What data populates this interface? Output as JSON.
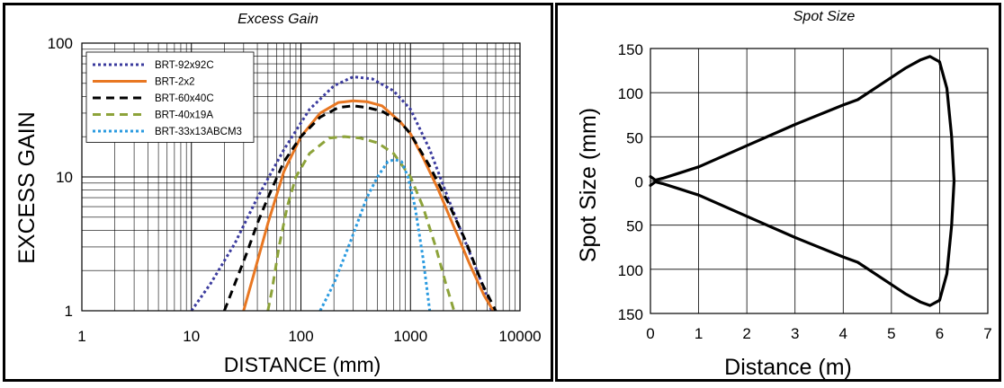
{
  "chart_data": [
    {
      "type": "line",
      "title": "Excess Gain",
      "xlabel": "DISTANCE (mm)",
      "ylabel": "EXCESS GAIN",
      "x_scale": "log",
      "y_scale": "log",
      "xlim": [
        1,
        10000
      ],
      "ylim": [
        1,
        100
      ],
      "x_ticks": [
        "1",
        "10",
        "100",
        "1000",
        "10000"
      ],
      "y_ticks": [
        "1",
        "10",
        "100"
      ],
      "grid": true,
      "legend_position": "top-left",
      "series": [
        {
          "name": "BRT-92x92C",
          "color": "#3b3b9e",
          "dash": "dotted",
          "x": [
            10,
            15,
            25,
            40,
            70,
            120,
            200,
            300,
            450,
            700,
            1000,
            1500,
            2200,
            3200,
            4500,
            5500
          ],
          "y": [
            1,
            1.6,
            3.2,
            7,
            16,
            32,
            48,
            56,
            54,
            44,
            32,
            16,
            7,
            3.2,
            1.6,
            1
          ]
        },
        {
          "name": "BRT-2x2",
          "color": "#e87722",
          "dash": "solid",
          "x": [
            30,
            38,
            50,
            70,
            100,
            150,
            220,
            300,
            400,
            550,
            800,
            1000,
            1300,
            1800,
            2500,
            3500,
            4700,
            5700
          ],
          "y": [
            1,
            2,
            4.5,
            11,
            20,
            30,
            36,
            37,
            36.5,
            34,
            26,
            21,
            14,
            8,
            4.2,
            2.2,
            1.3,
            1
          ]
        },
        {
          "name": "BRT-60x40C",
          "color": "#000000",
          "dash": "dashed",
          "x": [
            20,
            25,
            32,
            40,
            50,
            70,
            100,
            150,
            220,
            300,
            400,
            550,
            800,
            1000,
            1500,
            2200,
            3200,
            4500,
            6000
          ],
          "y": [
            1,
            1.6,
            2.7,
            4.5,
            7,
            13,
            20,
            28,
            33,
            34,
            33,
            31,
            26,
            21,
            12,
            6.5,
            3.3,
            1.6,
            1
          ]
        },
        {
          "name": "BRT-40x19A",
          "color": "#8da33a",
          "dash": "dashed",
          "x": [
            50,
            55,
            63,
            75,
            90,
            120,
            180,
            250,
            350,
            500,
            700,
            1000,
            1300,
            1700,
            2100,
            2500
          ],
          "y": [
            1,
            1.5,
            3,
            6,
            10,
            15,
            19.5,
            20,
            19.5,
            18,
            15,
            10,
            6,
            3,
            1.6,
            1
          ]
        },
        {
          "name": "BRT-33x13ABCM3",
          "color": "#2b9be0",
          "dash": "dotted",
          "x": [
            150,
            200,
            280,
            400,
            500,
            620,
            720,
            830,
            950,
            1100,
            1300,
            1500
          ],
          "y": [
            1,
            1.6,
            3.2,
            7,
            10,
            13,
            13.5,
            13,
            10,
            6,
            2.5,
            1
          ]
        }
      ]
    },
    {
      "type": "line",
      "title": "Spot Size",
      "xlabel": "Distance (m)",
      "ylabel": "Spot Size (mm)",
      "xlim": [
        0,
        7
      ],
      "ylim": [
        -150,
        150
      ],
      "x_ticks": [
        "0",
        "1",
        "2",
        "3",
        "4",
        "5",
        "6",
        "7"
      ],
      "y_ticks": [
        "150",
        "100",
        "50",
        "0",
        "50",
        "100",
        "150"
      ],
      "grid": true,
      "series": [
        {
          "color": "#000000",
          "x": [
            0,
            0.1,
            0.25,
            0.6,
            1,
            2,
            3,
            4,
            4.3,
            4.8,
            5.3,
            5.6,
            5.8,
            6.0,
            6.15,
            6.25,
            6.3,
            6.25,
            6.15,
            6.0,
            5.8,
            5.6,
            5.3,
            4.8,
            4.3,
            4,
            3,
            2,
            1,
            0.6,
            0.25,
            0.1,
            0
          ],
          "y": [
            5,
            1,
            3,
            9,
            16,
            40,
            64,
            86,
            92,
            110,
            128,
            137,
            141,
            135,
            105,
            50,
            0,
            -50,
            -105,
            -135,
            -141,
            -137,
            -128,
            -110,
            -92,
            -86,
            -64,
            -40,
            -16,
            -9,
            -3,
            -1,
            -5
          ]
        }
      ]
    }
  ]
}
